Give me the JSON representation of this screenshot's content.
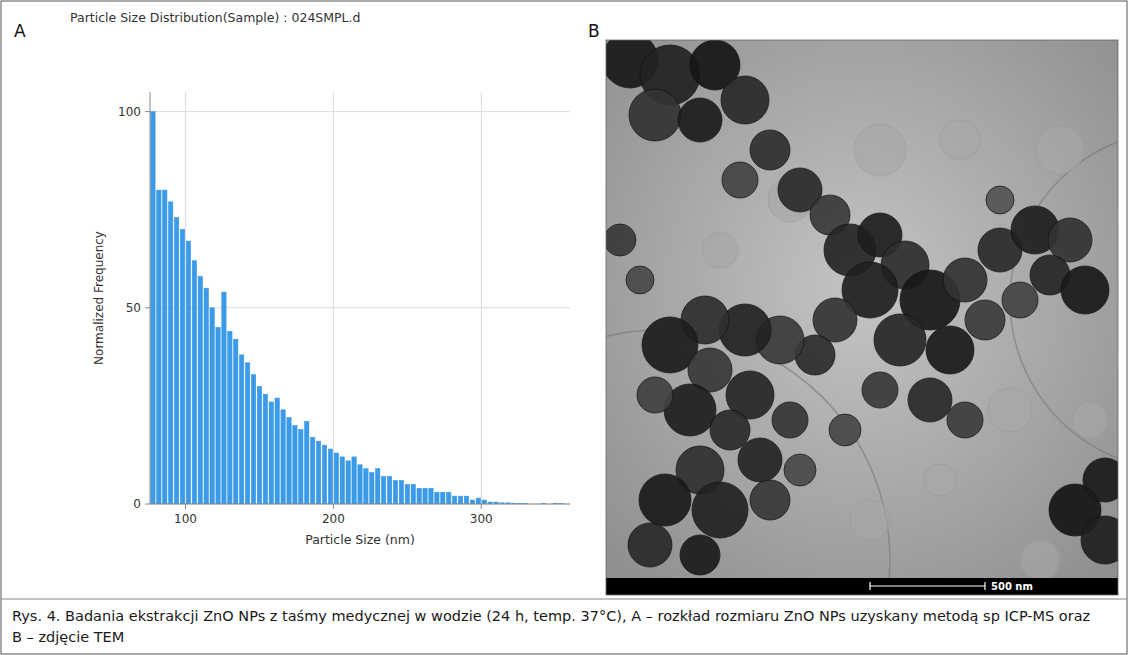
{
  "chart_data": {
    "type": "histogram",
    "title": "Particle Size Distribution(Sample) : 024SMPL.d",
    "x_label": "Particle Size (nm)",
    "y_label": "Normalized Frequency",
    "bins": [
      76,
      80,
      84,
      88,
      92,
      96,
      100,
      104,
      108,
      112,
      116,
      120,
      124,
      128,
      132,
      136,
      140,
      144,
      148,
      152,
      156,
      160,
      164,
      168,
      172,
      176,
      180,
      184,
      188,
      192,
      196,
      200,
      204,
      208,
      212,
      216,
      220,
      224,
      228,
      232,
      236,
      240,
      244,
      248,
      252,
      256,
      260,
      264,
      268,
      272,
      276,
      280,
      284,
      288,
      292,
      296,
      300,
      304,
      308,
      312,
      316,
      320,
      324,
      328,
      332,
      336,
      340,
      344,
      348,
      352,
      356
    ],
    "values": [
      100,
      80,
      80,
      77,
      73,
      70,
      67,
      62,
      58,
      55,
      50,
      45,
      54,
      44,
      42,
      38,
      36,
      33,
      30,
      28,
      26,
      27,
      24,
      22,
      20,
      19,
      21,
      17,
      16,
      15,
      14,
      13,
      12,
      11,
      12,
      10,
      9,
      8,
      9,
      7,
      7,
      6,
      6,
      5,
      5,
      4,
      4,
      4,
      3,
      3,
      3,
      2,
      2,
      2,
      1,
      1.5,
      1,
      0.5,
      0.5,
      0.3,
      0.3,
      0.2,
      0.1,
      0.1,
      0,
      0,
      0.1,
      0,
      0.2,
      0.1
    ],
    "color": "#3c9be8",
    "xlim": [
      76,
      360
    ],
    "ylim": [
      0,
      105
    ],
    "xticks": [
      100,
      200,
      300
    ],
    "yticks": [
      0,
      50,
      100
    ],
    "grid": true
  },
  "figure": {
    "panels": [
      "A",
      "B"
    ],
    "scale_bar": "500 nm",
    "caption": "Rys. 4. Badania ekstrakcji ZnO NPs z taśmy medycznej w wodzie (24 h, temp. 37°C), A – rozkład rozmiaru ZnO NPs uzyskany metodą sp ICP-MS oraz B – zdjęcie TEM"
  }
}
